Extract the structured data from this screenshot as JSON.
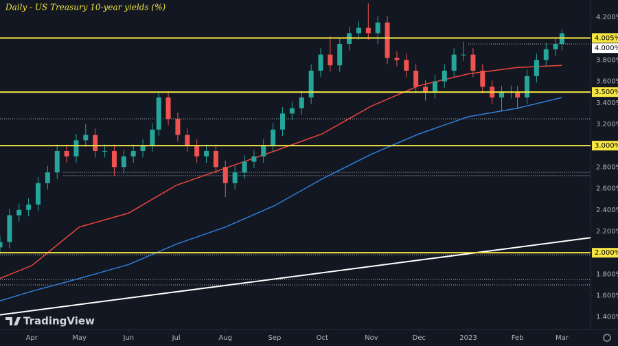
{
  "chart_data": {
    "type": "candlestick",
    "title": "Daily - US Treasury 10-year yields (%)",
    "brand": "TradingView",
    "x": [
      -20,
      -14,
      -8,
      -2,
      4,
      10,
      16,
      22,
      28,
      34,
      40,
      46,
      52,
      58,
      64,
      70,
      76,
      80,
      86,
      92,
      98,
      104,
      110,
      116,
      122,
      128,
      134,
      140,
      146,
      152,
      158,
      164,
      170,
      176,
      182,
      188,
      194,
      200,
      206,
      212,
      218,
      224,
      230,
      236,
      242,
      248,
      254,
      260,
      266,
      272,
      278,
      284,
      290,
      296,
      302,
      306,
      312,
      318,
      324,
      330,
      334
    ],
    "open": [
      2.05,
      2.1,
      2.35,
      2.4,
      2.45,
      2.65,
      2.75,
      2.95,
      2.9,
      3.05,
      3.1,
      2.95,
      2.95,
      2.8,
      2.9,
      2.95,
      3.0,
      3.15,
      3.45,
      3.25,
      3.1,
      3.0,
      2.9,
      2.95,
      2.8,
      2.65,
      2.75,
      2.85,
      2.9,
      3.0,
      3.15,
      3.3,
      3.35,
      3.45,
      3.7,
      3.85,
      3.75,
      3.95,
      4.05,
      4.1,
      4.05,
      4.15,
      3.82,
      3.8,
      3.7,
      3.55,
      3.5,
      3.6,
      3.7,
      3.85,
      3.85,
      3.7,
      3.55,
      3.45,
      3.5,
      3.5,
      3.45,
      3.65,
      3.8,
      3.9,
      3.95
    ],
    "high": [
      2.16,
      2.41,
      2.46,
      2.51,
      2.71,
      2.81,
      3.01,
      3.01,
      3.11,
      3.2,
      3.16,
      3.01,
      3.01,
      2.96,
      3.01,
      3.06,
      3.21,
      3.5,
      3.51,
      3.31,
      3.16,
      3.06,
      3.01,
      3.01,
      2.86,
      2.81,
      2.91,
      2.96,
      3.06,
      3.21,
      3.36,
      3.41,
      3.51,
      3.76,
      3.91,
      4.02,
      4.01,
      4.11,
      4.16,
      4.33,
      4.21,
      4.21,
      3.88,
      3.86,
      3.76,
      3.61,
      3.66,
      3.76,
      3.91,
      3.97,
      3.91,
      3.76,
      3.61,
      3.56,
      3.56,
      3.56,
      3.71,
      3.86,
      3.96,
      4.01,
      4.09
    ],
    "low": [
      1.99,
      2.04,
      2.29,
      2.34,
      2.39,
      2.59,
      2.69,
      2.84,
      2.84,
      2.99,
      2.89,
      2.89,
      2.72,
      2.74,
      2.84,
      2.89,
      2.94,
      3.09,
      3.19,
      3.04,
      2.94,
      2.84,
      2.84,
      2.74,
      2.52,
      2.59,
      2.69,
      2.79,
      2.84,
      2.94,
      3.09,
      3.24,
      3.29,
      3.39,
      3.64,
      3.69,
      3.69,
      3.89,
      3.99,
      3.99,
      3.95,
      3.76,
      3.74,
      3.64,
      3.49,
      3.42,
      3.44,
      3.54,
      3.64,
      3.79,
      3.64,
      3.49,
      3.39,
      3.32,
      3.44,
      3.34,
      3.39,
      3.59,
      3.74,
      3.84,
      3.89
    ],
    "close": [
      2.1,
      2.35,
      2.4,
      2.45,
      2.65,
      2.75,
      2.95,
      2.9,
      3.05,
      3.1,
      2.95,
      2.95,
      2.8,
      2.9,
      2.95,
      3.0,
      3.15,
      3.45,
      3.25,
      3.1,
      3.0,
      2.9,
      2.95,
      2.8,
      2.65,
      2.75,
      2.85,
      2.9,
      3.0,
      3.15,
      3.3,
      3.35,
      3.45,
      3.7,
      3.85,
      3.75,
      3.95,
      4.05,
      4.1,
      4.05,
      4.15,
      3.82,
      3.8,
      3.7,
      3.55,
      3.5,
      3.6,
      3.7,
      3.85,
      3.85,
      3.7,
      3.55,
      3.45,
      3.5,
      3.5,
      3.45,
      3.65,
      3.8,
      3.9,
      3.95,
      4.05
    ],
    "up_color": "#26a69a",
    "down_color": "#ef5350",
    "lines": [
      {
        "color": "#f0443a",
        "x": [
          -20,
          0,
          30,
          61,
          91,
          122,
          153,
          183,
          214,
          244,
          275,
          306,
          334
        ],
        "values": [
          1.76,
          1.88,
          2.24,
          2.37,
          2.63,
          2.79,
          2.95,
          3.11,
          3.37,
          3.56,
          3.67,
          3.73,
          3.75
        ]
      },
      {
        "color": "#2e7fd9",
        "x": [
          -20,
          0,
          30,
          61,
          91,
          122,
          153,
          183,
          214,
          244,
          275,
          306,
          334
        ],
        "values": [
          1.55,
          1.64,
          1.76,
          1.89,
          2.08,
          2.24,
          2.44,
          2.69,
          2.92,
          3.11,
          3.27,
          3.35,
          3.45
        ]
      },
      {
        "color": "#ffffff",
        "x": [
          -20,
          352
        ],
        "values": [
          1.42,
          2.14
        ]
      }
    ],
    "levels": [
      {
        "value": 4.005,
        "label": "4.005%"
      },
      {
        "value": 3.5,
        "label": "3.500%"
      },
      {
        "value": 3.0,
        "label": "3.000%"
      },
      {
        "value": 2.0,
        "label": "2.000%"
      }
    ],
    "level_color": "#f5e642",
    "price_label": {
      "value": 4.0,
      "label": "4.000%"
    },
    "dotted_lines": [
      {
        "value": 3.95,
        "x0": 275
      },
      {
        "value": 3.25,
        "x0": -20
      },
      {
        "value": 2.75,
        "x0": 20
      },
      {
        "value": 2.72,
        "x0": 20
      },
      {
        "value": 1.98,
        "x0": -20
      },
      {
        "value": 1.75,
        "x0": -20
      },
      {
        "value": 1.7,
        "x0": -20
      }
    ],
    "xlim": [
      -20,
      352
    ],
    "ylim": [
      1.283,
      4.36
    ],
    "xticks": [
      {
        "value": 0,
        "label": "Apr"
      },
      {
        "value": 30,
        "label": "May"
      },
      {
        "value": 61,
        "label": "Jun"
      },
      {
        "value": 91,
        "label": "Jul"
      },
      {
        "value": 122,
        "label": "Aug"
      },
      {
        "value": 153,
        "label": "Sep"
      },
      {
        "value": 183,
        "label": "Oct"
      },
      {
        "value": 214,
        "label": "Nov"
      },
      {
        "value": 244,
        "label": "Dec"
      },
      {
        "value": 275,
        "label": "2023"
      },
      {
        "value": 306,
        "label": "Feb"
      },
      {
        "value": 334,
        "label": "Mar"
      }
    ],
    "yticks": [
      {
        "value": 1.4,
        "label": "1.400%"
      },
      {
        "value": 1.6,
        "label": "1.600%"
      },
      {
        "value": 1.8,
        "label": "1.800%"
      },
      {
        "value": 2.0,
        "label": "2.000%"
      },
      {
        "value": 2.2,
        "label": "2.200%"
      },
      {
        "value": 2.4,
        "label": "2.400%"
      },
      {
        "value": 2.6,
        "label": "2.600%"
      },
      {
        "value": 2.8,
        "label": "2.800%"
      },
      {
        "value": 3.0,
        "label": "3.000%"
      },
      {
        "value": 3.2,
        "label": "3.200%"
      },
      {
        "value": 3.4,
        "label": "3.400%"
      },
      {
        "value": 3.6,
        "label": "3.600%"
      },
      {
        "value": 3.8,
        "label": "3.800%"
      },
      {
        "value": 4.0,
        "label": "4.000%"
      },
      {
        "value": 4.2,
        "label": "4.200%"
      }
    ]
  }
}
